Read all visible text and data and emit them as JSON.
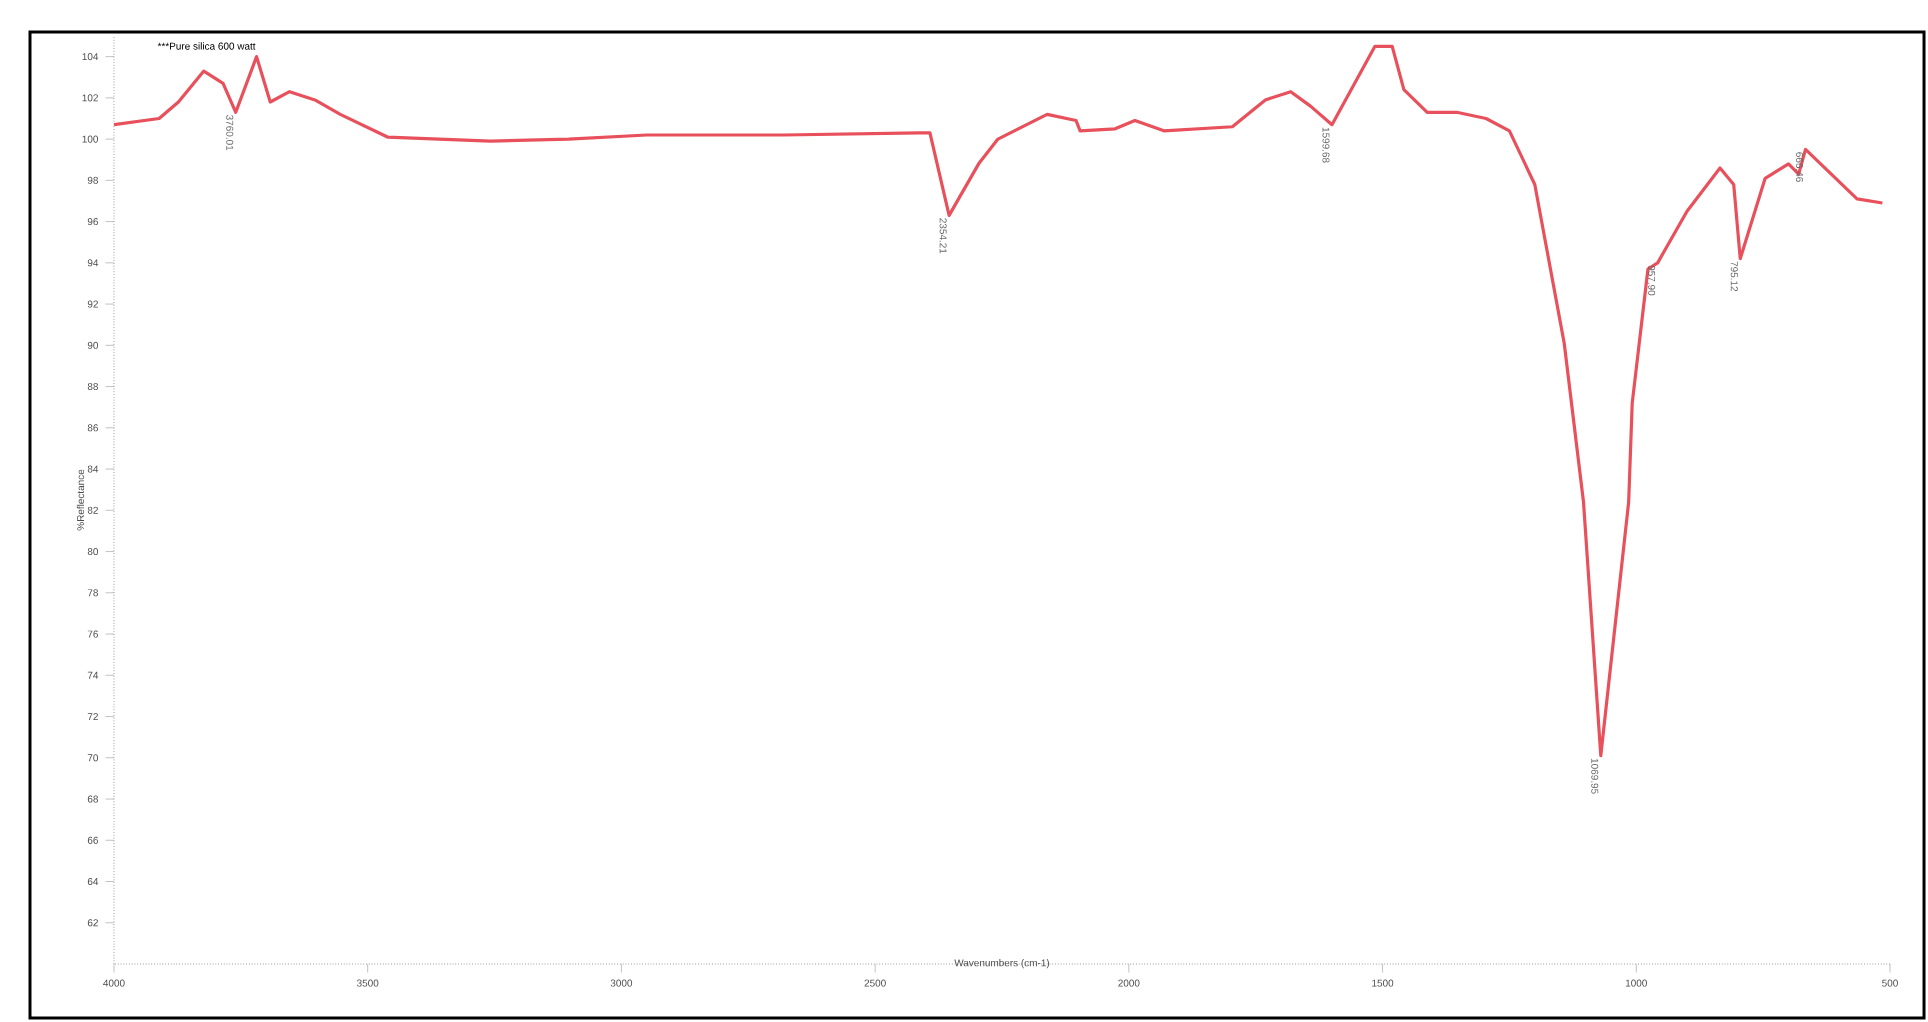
{
  "chart_data": {
    "type": "line",
    "xlabel": "Wavenumbers (cm-1)",
    "ylabel": "%Reflectance",
    "xlim": [
      4000,
      500
    ],
    "xticks": [
      4000,
      3500,
      3000,
      2500,
      2000,
      1500,
      1000,
      500
    ],
    "ylim": [
      60,
      105
    ],
    "yticks": [
      62,
      64,
      66,
      68,
      70,
      72,
      74,
      76,
      78,
      80,
      82,
      84,
      86,
      88,
      90,
      92,
      94,
      96,
      98,
      100,
      102,
      104
    ],
    "legend": "top left",
    "grid": false,
    "series": [
      {
        "name": "***Pure silica 600 watt",
        "color": "#e8505b",
        "x": [
          4000,
          3911,
          3873,
          3823,
          3785,
          3760.01,
          3719,
          3692,
          3654,
          3604,
          3554,
          3461,
          3258,
          3104,
          2950,
          2681,
          2412,
          2392,
          2354.21,
          2296,
          2258,
          2161,
          2104,
          2096,
          2027,
          1988,
          1931,
          1796,
          1731,
          1681,
          1642,
          1599.68,
          1515,
          1481,
          1458,
          1412,
          1354,
          1296,
          1250,
          1200,
          1142,
          1104,
          1069.95,
          1015,
          1008,
          977,
          957.9,
          900,
          835,
          808,
          795.12,
          746,
          700,
          680,
          666.46,
          565,
          515
        ],
        "values": [
          100.7,
          101.0,
          101.8,
          103.3,
          102.7,
          101.3,
          104.0,
          101.8,
          102.3,
          101.9,
          101.2,
          100.1,
          99.9,
          100.0,
          100.2,
          100.2,
          100.3,
          100.3,
          96.3,
          98.8,
          100.0,
          101.2,
          100.9,
          100.4,
          100.5,
          100.9,
          100.4,
          100.6,
          101.9,
          102.3,
          101.6,
          100.7,
          104.5,
          104.5,
          102.4,
          101.3,
          101.3,
          101.0,
          100.4,
          97.8,
          90.1,
          82.4,
          70.1,
          82.4,
          87.2,
          93.7,
          94.0,
          96.5,
          98.6,
          97.8,
          94.2,
          98.1,
          98.8,
          98.3,
          99.5,
          97.1,
          96.9
        ]
      }
    ],
    "annotations": [
      {
        "text": "3760.01",
        "x": 3760.01,
        "y": 101.3
      },
      {
        "text": "2354.21",
        "x": 2354.21,
        "y": 96.3
      },
      {
        "text": "1599.68",
        "x": 1599.68,
        "y": 100.7
      },
      {
        "text": "1069.95",
        "x": 1069.95,
        "y": 70.1
      },
      {
        "text": "957.90",
        "x": 957.9,
        "y": 94.0
      },
      {
        "text": "795.12",
        "x": 795.12,
        "y": 94.2
      },
      {
        "text": "666.46",
        "x": 666.46,
        "y": 99.5
      }
    ]
  }
}
